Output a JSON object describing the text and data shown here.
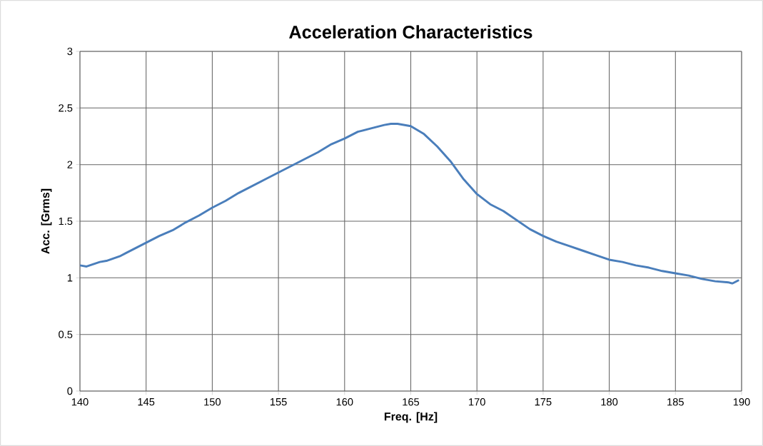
{
  "chart_data": {
    "type": "line",
    "title": "Acceleration Characteristics",
    "xlabel": "Freq. [Hz]",
    "ylabel": "Acc. [Grms]",
    "xlim": [
      140,
      190
    ],
    "xticks": [
      140,
      145,
      150,
      155,
      160,
      165,
      170,
      175,
      180,
      185,
      190
    ],
    "ylim": [
      0,
      3
    ],
    "yticks": [
      0,
      0.5,
      1,
      1.5,
      2,
      2.5,
      3
    ],
    "grid": true,
    "legend": false,
    "marker": "none",
    "line_style": "solid",
    "series": [
      {
        "color": "#4a7ebb",
        "x": [
          140,
          140.5,
          141,
          141.5,
          142,
          143,
          143.5,
          144,
          145,
          146,
          147,
          148,
          149,
          150,
          151,
          152,
          153,
          154,
          155,
          156,
          157,
          158,
          159,
          160,
          161,
          162,
          163,
          163.5,
          164,
          165,
          166,
          167,
          168,
          169,
          170,
          171,
          172,
          173,
          174,
          175,
          176,
          177,
          178,
          179,
          180,
          181,
          182,
          183,
          184,
          185,
          186,
          187,
          188,
          189,
          189.3,
          189.8
        ],
        "values": [
          1.11,
          1.1,
          1.12,
          1.14,
          1.15,
          1.19,
          1.22,
          1.25,
          1.31,
          1.37,
          1.42,
          1.49,
          1.55,
          1.62,
          1.68,
          1.75,
          1.81,
          1.87,
          1.93,
          1.99,
          2.05,
          2.11,
          2.18,
          2.23,
          2.29,
          2.32,
          2.35,
          2.36,
          2.36,
          2.34,
          2.27,
          2.16,
          2.03,
          1.87,
          1.74,
          1.65,
          1.59,
          1.51,
          1.43,
          1.37,
          1.32,
          1.28,
          1.24,
          1.2,
          1.16,
          1.14,
          1.11,
          1.09,
          1.06,
          1.04,
          1.02,
          0.99,
          0.97,
          0.96,
          0.95,
          0.98
        ]
      }
    ]
  }
}
